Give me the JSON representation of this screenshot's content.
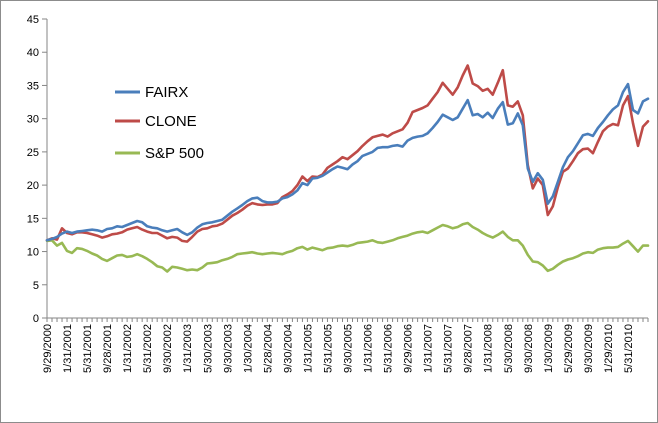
{
  "chart_data": {
    "type": "line",
    "title": "",
    "xlabel": "",
    "ylabel": "",
    "ylim": [
      0,
      45
    ],
    "yticks": [
      0,
      5,
      10,
      15,
      20,
      25,
      30,
      35,
      40,
      45
    ],
    "grid": false,
    "legend_position": "left-middle",
    "x_start": "2000-09",
    "x_tick_labels": [
      "9/29/2000",
      "1/31/2001",
      "5/31/2001",
      "9/28/2001",
      "1/31/2002",
      "5/31/2002",
      "9/30/2002",
      "1/31/2003",
      "5/30/2003",
      "9/30/2003",
      "1/30/2004",
      "5/28/2004",
      "9/30/2004",
      "1/31/2005",
      "5/31/2005",
      "9/30/2005",
      "1/31/2006",
      "5/31/2006",
      "9/29/2006",
      "1/31/2007",
      "5/31/2007",
      "9/28/2007",
      "1/31/2008",
      "5/30/2008",
      "9/30/2008",
      "1/30/2009",
      "5/29/2009",
      "9/30/2009",
      "1/29/2010",
      "5/31/2010"
    ],
    "series": [
      {
        "name": "FAIRX",
        "color": "#4a7ebb",
        "values": [
          11.7,
          11.9,
          12.2,
          12.7,
          13.0,
          12.8,
          13.0,
          13.1,
          13.2,
          13.3,
          13.2,
          13.0,
          13.4,
          13.5,
          13.8,
          13.7,
          14.0,
          14.3,
          14.6,
          14.4,
          13.8,
          13.6,
          13.5,
          13.2,
          13.0,
          13.2,
          13.4,
          12.9,
          12.5,
          12.9,
          13.6,
          14.1,
          14.3,
          14.4,
          14.6,
          14.8,
          15.4,
          16.0,
          16.5,
          17.0,
          17.6,
          18.0,
          18.1,
          17.6,
          17.4,
          17.4,
          17.5,
          18.0,
          18.2,
          18.6,
          19.2,
          20.3,
          20.0,
          21.0,
          21.1,
          21.4,
          21.9,
          22.4,
          22.8,
          22.6,
          22.4,
          23.1,
          23.6,
          24.4,
          24.7,
          25.0,
          25.6,
          25.7,
          25.7,
          25.9,
          26.0,
          25.8,
          26.7,
          27.1,
          27.3,
          27.4,
          27.8,
          28.6,
          29.5,
          30.6,
          30.2,
          29.8,
          30.2,
          31.5,
          32.8,
          30.5,
          30.7,
          30.2,
          30.9,
          30.1,
          31.5,
          32.5,
          29.1,
          29.3,
          30.8,
          29.0,
          22.5,
          20.5,
          21.8,
          20.8,
          17.2,
          18.3,
          20.5,
          22.7,
          24.2,
          25.1,
          26.3,
          27.5,
          27.7,
          27.4,
          28.6,
          29.5,
          30.5,
          31.4,
          32.0,
          34.0,
          35.2,
          31.3,
          30.8,
          32.6,
          33.0
        ]
      },
      {
        "name": "CLONE",
        "color": "#be4b48",
        "values": [
          11.7,
          12.0,
          11.8,
          13.5,
          12.8,
          12.6,
          12.9,
          12.9,
          12.8,
          12.6,
          12.4,
          12.1,
          12.3,
          12.6,
          12.7,
          12.9,
          13.3,
          13.5,
          13.7,
          13.3,
          13.0,
          12.8,
          12.8,
          12.4,
          12.0,
          12.2,
          12.1,
          11.6,
          11.5,
          12.2,
          13.0,
          13.4,
          13.5,
          13.8,
          13.9,
          14.2,
          14.8,
          15.4,
          15.8,
          16.3,
          16.9,
          17.3,
          17.1,
          17.0,
          17.1,
          17.1,
          17.3,
          18.2,
          18.6,
          19.1,
          20.0,
          21.3,
          20.6,
          21.3,
          21.2,
          21.6,
          22.6,
          23.1,
          23.6,
          24.2,
          23.9,
          24.5,
          25.1,
          25.9,
          26.6,
          27.2,
          27.4,
          27.6,
          27.3,
          27.8,
          28.1,
          28.4,
          29.4,
          31.0,
          31.3,
          31.6,
          32.0,
          33.0,
          34.0,
          35.4,
          34.5,
          33.6,
          34.7,
          36.5,
          38.0,
          35.3,
          34.9,
          34.2,
          34.5,
          33.6,
          35.4,
          37.3,
          32.0,
          31.8,
          32.6,
          30.5,
          23.0,
          19.5,
          21.0,
          20.0,
          15.5,
          16.8,
          19.7,
          22.0,
          22.5,
          23.6,
          24.8,
          25.4,
          25.5,
          24.8,
          26.5,
          28.1,
          28.8,
          29.2,
          29.0,
          32.0,
          33.4,
          29.3,
          25.9,
          28.8,
          29.6
        ]
      },
      {
        "name": "S&P 500",
        "color": "#98b954",
        "values": [
          11.6,
          11.7,
          10.9,
          11.3,
          10.1,
          9.8,
          10.5,
          10.4,
          10.1,
          9.7,
          9.4,
          8.9,
          8.6,
          9.0,
          9.4,
          9.5,
          9.2,
          9.3,
          9.6,
          9.3,
          8.9,
          8.4,
          7.8,
          7.6,
          7.0,
          7.7,
          7.6,
          7.4,
          7.2,
          7.3,
          7.2,
          7.6,
          8.2,
          8.3,
          8.4,
          8.7,
          8.9,
          9.2,
          9.6,
          9.7,
          9.8,
          9.9,
          9.7,
          9.6,
          9.7,
          9.8,
          9.7,
          9.6,
          9.9,
          10.1,
          10.5,
          10.7,
          10.3,
          10.6,
          10.4,
          10.2,
          10.5,
          10.6,
          10.8,
          10.9,
          10.8,
          11.0,
          11.3,
          11.4,
          11.5,
          11.7,
          11.4,
          11.3,
          11.5,
          11.7,
          12.0,
          12.2,
          12.4,
          12.7,
          12.9,
          13.0,
          12.8,
          13.2,
          13.6,
          14.0,
          13.8,
          13.5,
          13.7,
          14.1,
          14.3,
          13.7,
          13.3,
          12.8,
          12.4,
          12.1,
          12.5,
          13.0,
          12.2,
          11.7,
          11.7,
          10.9,
          9.5,
          8.5,
          8.4,
          7.9,
          7.1,
          7.4,
          8.0,
          8.5,
          8.8,
          9.0,
          9.3,
          9.7,
          9.9,
          9.8,
          10.3,
          10.5,
          10.6,
          10.6,
          10.7,
          11.2,
          11.6,
          10.8,
          10.0,
          10.9,
          10.9
        ]
      }
    ]
  }
}
